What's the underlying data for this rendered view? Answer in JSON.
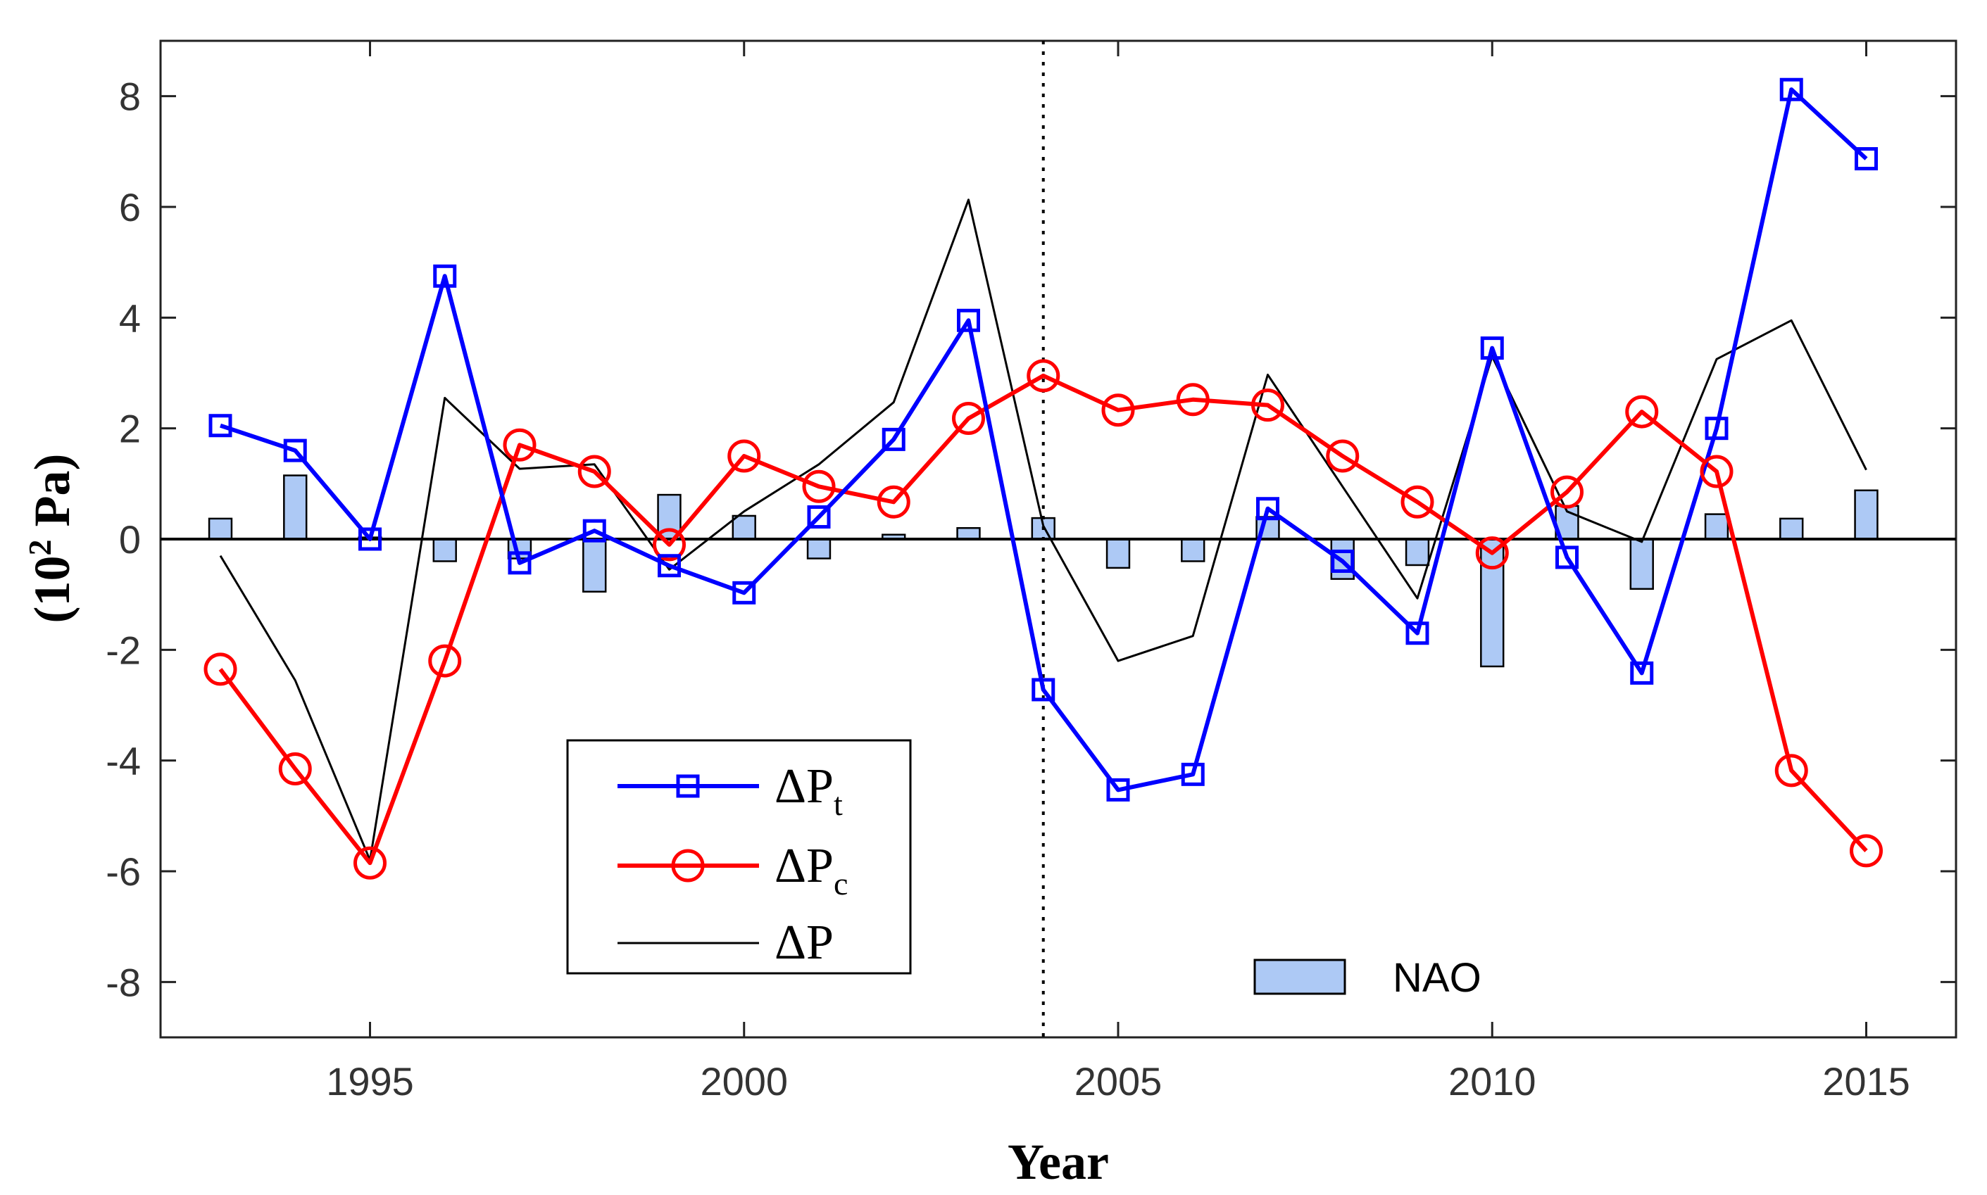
{
  "chart_data": {
    "type": "line",
    "xlabel": "Year",
    "ylabel": "(10",
    "ylabel_sup": "2",
    "ylabel_unit": " Pa)",
    "xlim": [
      1992.2,
      2016.2
    ],
    "ylim": [
      -9,
      9
    ],
    "xticks": [
      1995,
      2000,
      2005,
      2010,
      2015
    ],
    "yticks": [
      -8,
      -6,
      -4,
      -2,
      0,
      2,
      4,
      6,
      8
    ],
    "ytick_labels": [
      "-8",
      "-6",
      "-4",
      "-2",
      "0",
      "2",
      "4",
      "6",
      "8"
    ],
    "vline_x": 2004,
    "x": [
      1993,
      1994,
      1995,
      1996,
      1997,
      1998,
      1999,
      2000,
      2001,
      2002,
      2003,
      2004,
      2005,
      2006,
      2007,
      2008,
      2009,
      2010,
      2011,
      2012,
      2013,
      2014,
      2015
    ],
    "series": [
      {
        "name": "ΔPt",
        "symbol": "ΔP",
        "subscript": "t",
        "color": "#0000ff",
        "marker": "square",
        "values": [
          2.05,
          1.6,
          0.0,
          4.75,
          -0.43,
          0.15,
          -0.48,
          -0.97,
          0.4,
          1.8,
          3.95,
          -2.72,
          -4.53,
          -4.25,
          0.55,
          -0.4,
          -1.7,
          3.45,
          -0.33,
          -2.42,
          2.0,
          8.12,
          6.87
        ]
      },
      {
        "name": "ΔPc",
        "symbol": "ΔP",
        "subscript": "c",
        "color": "#ff0000",
        "marker": "circle",
        "values": [
          -2.35,
          -4.15,
          -5.85,
          -2.2,
          1.7,
          1.22,
          -0.1,
          1.5,
          0.95,
          0.67,
          2.18,
          2.95,
          2.33,
          2.52,
          2.42,
          1.5,
          0.67,
          -0.25,
          0.85,
          2.3,
          1.22,
          -4.18,
          -5.63
        ]
      },
      {
        "name": "ΔP",
        "symbol": "ΔP",
        "subscript": "",
        "color": "#000000",
        "marker": "none",
        "values": [
          -0.3,
          -2.55,
          -5.8,
          2.55,
          1.27,
          1.35,
          -0.55,
          0.5,
          1.35,
          2.47,
          6.13,
          0.24,
          -2.2,
          -1.75,
          2.97,
          0.95,
          -1.07,
          3.3,
          0.5,
          -0.05,
          3.25,
          3.95,
          1.25
        ]
      }
    ],
    "bars": {
      "name": "NAO",
      "color": "#adc9f5",
      "edge": "#000000",
      "values": [
        0.37,
        1.15,
        0.03,
        -0.4,
        -0.35,
        -0.95,
        0.8,
        0.42,
        -0.35,
        0.08,
        0.2,
        0.38,
        -0.52,
        -0.4,
        0.4,
        -0.72,
        -0.47,
        -2.3,
        0.6,
        -0.9,
        0.45,
        0.37,
        0.88
      ]
    }
  }
}
